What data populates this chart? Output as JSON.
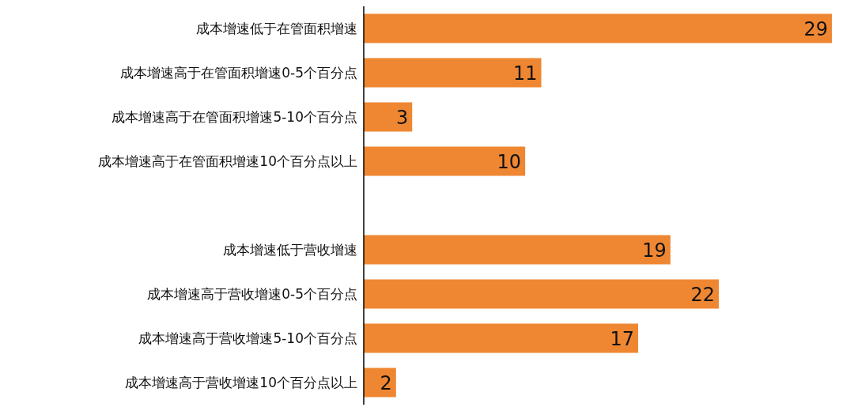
{
  "chart_data": {
    "type": "bar",
    "orientation": "horizontal",
    "categories": [
      "成本增速低于在管面积增速",
      "成本增速高于在管面积增速0-5个百分点",
      "成本增速高于在管面积增速5-10个百分点",
      "成本增速高于在管面积增速10个百分点以上",
      null,
      "成本增速低于营收增速",
      "成本增速高于营收增速0-5个百分点",
      "成本增速高于营收增速5-10个百分点",
      "成本增速高于营收增速10个百分点以上"
    ],
    "values": [
      29,
      11,
      3,
      10,
      null,
      19,
      22,
      17,
      2
    ],
    "color": "#ef8732",
    "data_labels": true,
    "grid": false,
    "legend": false
  }
}
